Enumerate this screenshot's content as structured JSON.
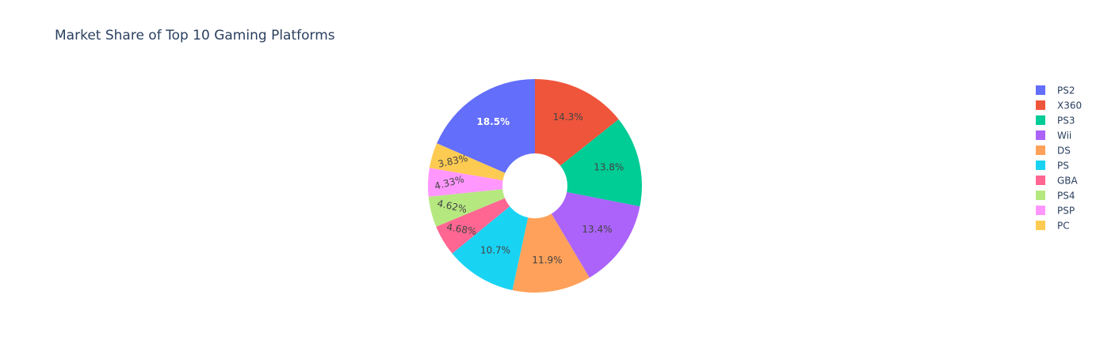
{
  "chart_data": {
    "type": "pie",
    "title": "Market Share of Top 10 Gaming Platforms",
    "hole": true,
    "legend_position": "right",
    "categories": [
      "PS2",
      "X360",
      "PS3",
      "Wii",
      "DS",
      "PS",
      "GBA",
      "PS4",
      "PSP",
      "PC"
    ],
    "values": [
      18.5,
      14.3,
      13.8,
      13.4,
      11.9,
      10.7,
      4.68,
      4.62,
      4.33,
      3.83
    ],
    "labels": [
      "18.5%",
      "14.3%",
      "13.8%",
      "13.4%",
      "11.9%",
      "10.7%",
      "4.68%",
      "4.62%",
      "4.33%",
      "3.83%"
    ],
    "colors": [
      "#636efa",
      "#ef553b",
      "#00cc96",
      "#ab63fa",
      "#ffa15a",
      "#19d3f3",
      "#ff6692",
      "#b6e880",
      "#ff97ff",
      "#fecb52"
    ],
    "label_colors": [
      "#ffffff",
      "#444444",
      "#444444",
      "#444444",
      "#444444",
      "#444444",
      "#444444",
      "#444444",
      "#444444",
      "#444444"
    ],
    "slice_order": [
      "PS2",
      "PC",
      "PSP",
      "PS4",
      "GBA",
      "PS",
      "DS",
      "Wii",
      "PS3",
      "X360"
    ]
  }
}
